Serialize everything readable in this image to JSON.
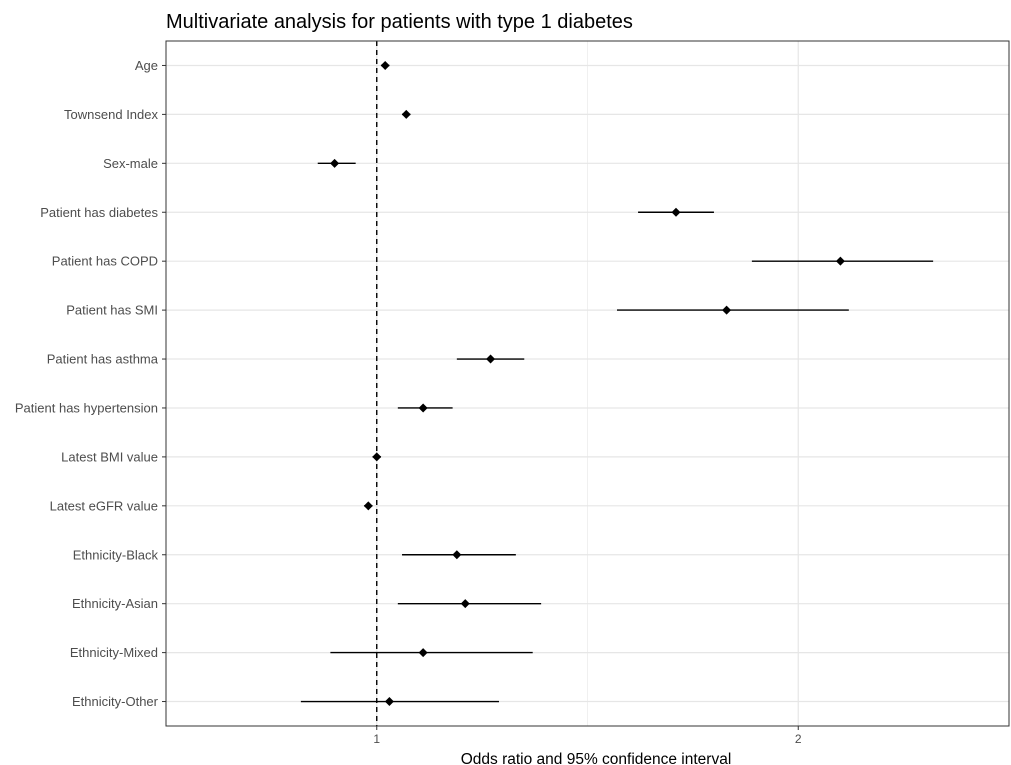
{
  "chart_data": {
    "type": "forest",
    "title": "Multivariate analysis for patients with type 1 diabetes",
    "xlabel": "Odds ratio and 95% confidence interval",
    "ylabel": "",
    "xlim": [
      0.5,
      2.5
    ],
    "x_ticks": [
      1,
      2
    ],
    "reference_line": 1,
    "grid": true,
    "rows": [
      {
        "label": "Age",
        "estimate": 1.02,
        "lower": 1.01,
        "upper": 1.03
      },
      {
        "label": "Townsend Index",
        "estimate": 1.07,
        "lower": 1.06,
        "upper": 1.08
      },
      {
        "label": "Sex-male",
        "estimate": 0.9,
        "lower": 0.86,
        "upper": 0.95
      },
      {
        "label": "Patient has diabetes",
        "estimate": 1.71,
        "lower": 1.62,
        "upper": 1.8
      },
      {
        "label": "Patient has COPD",
        "estimate": 2.1,
        "lower": 1.89,
        "upper": 2.32
      },
      {
        "label": "Patient has SMI",
        "estimate": 1.83,
        "lower": 1.57,
        "upper": 2.12
      },
      {
        "label": "Patient has asthma",
        "estimate": 1.27,
        "lower": 1.19,
        "upper": 1.35
      },
      {
        "label": "Patient has hypertension",
        "estimate": 1.11,
        "lower": 1.05,
        "upper": 1.18
      },
      {
        "label": "Latest BMI value",
        "estimate": 1.0,
        "lower": 0.99,
        "upper": 1.01
      },
      {
        "label": "Latest eGFR value",
        "estimate": 0.98,
        "lower": 0.97,
        "upper": 0.99
      },
      {
        "label": "Ethnicity-Black",
        "estimate": 1.19,
        "lower": 1.06,
        "upper": 1.33
      },
      {
        "label": "Ethnicity-Asian",
        "estimate": 1.21,
        "lower": 1.05,
        "upper": 1.39
      },
      {
        "label": "Ethnicity-Mixed",
        "estimate": 1.11,
        "lower": 0.89,
        "upper": 1.37
      },
      {
        "label": "Ethnicity-Other",
        "estimate": 1.03,
        "lower": 0.82,
        "upper": 1.29
      }
    ]
  }
}
